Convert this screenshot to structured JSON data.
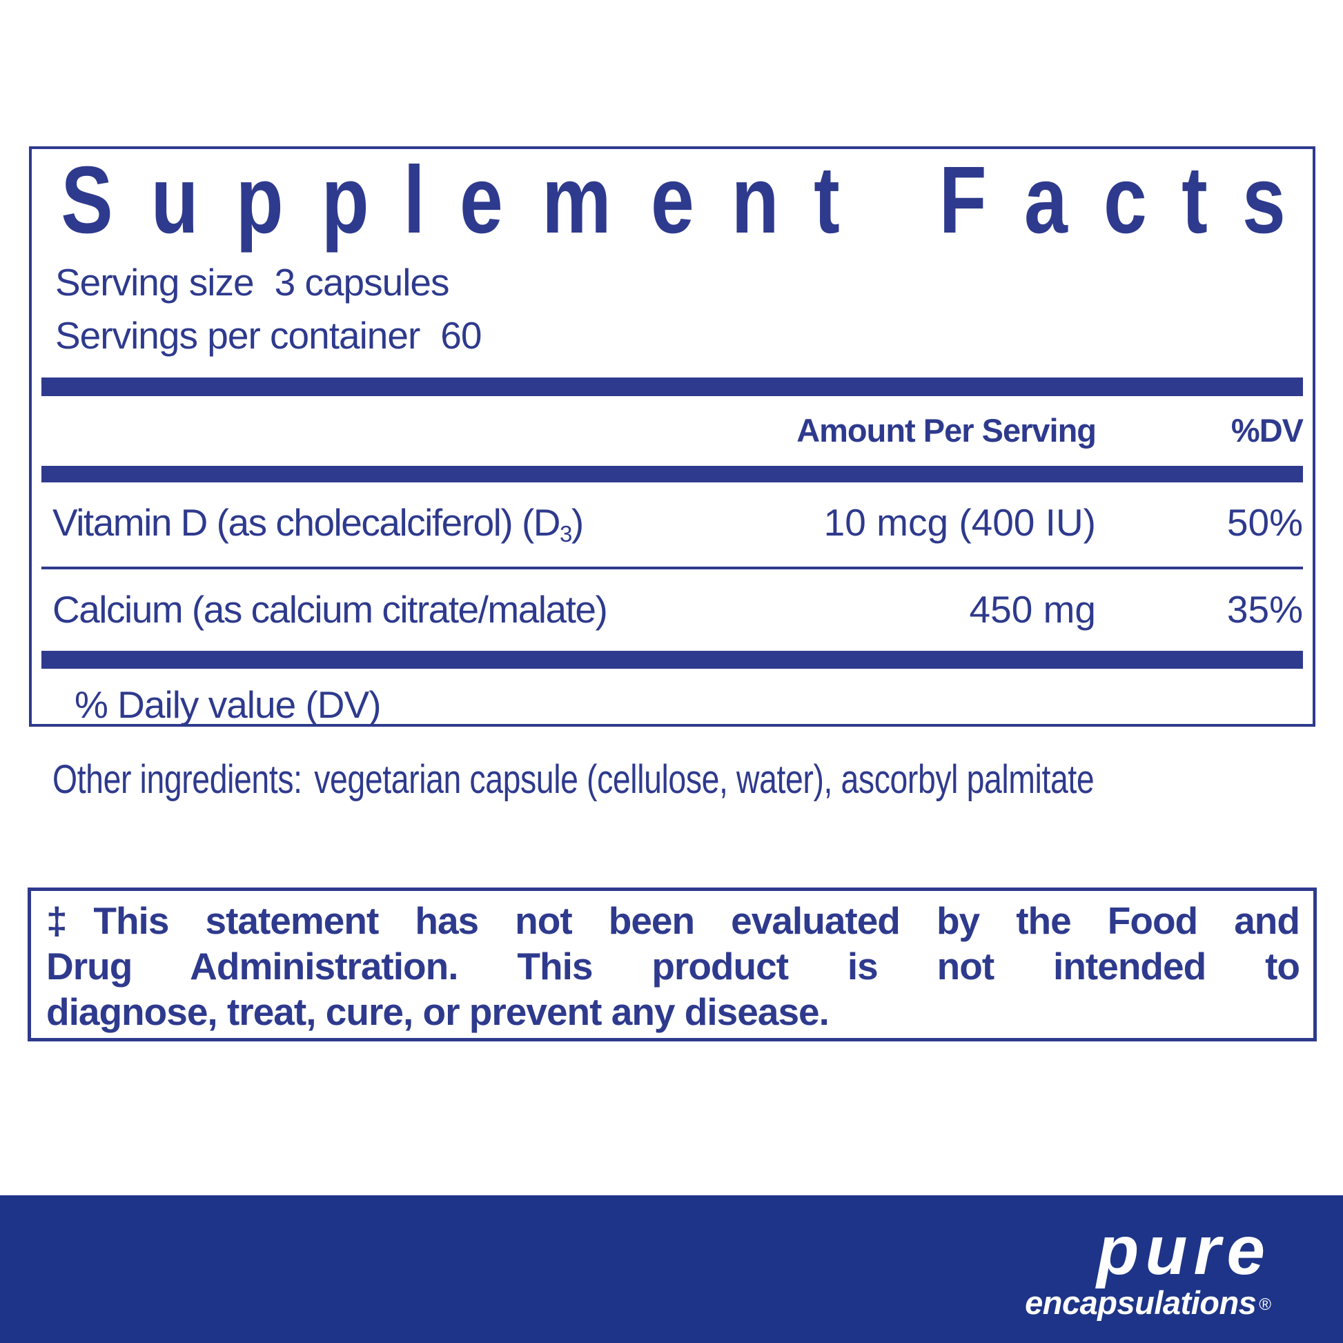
{
  "colors": {
    "ink": "#2e3a8d",
    "footer_bg": "#1d3488",
    "brand_text": "#ffffff"
  },
  "panel": {
    "title": "Supplement Facts",
    "serving_rows": [
      {
        "label": "Serving size",
        "value": "3 capsules"
      },
      {
        "label": "Servings per container",
        "value": "60"
      }
    ],
    "header": {
      "amount": "Amount Per Serving",
      "dv": "%DV"
    },
    "rows": [
      {
        "name": [
          {
            "t": "Vitamin D (as cholecalciferol) (D"
          },
          {
            "t": "3",
            "sub": true
          },
          {
            "t": ")"
          }
        ],
        "amount": "10 mcg (400 IU)",
        "dv": "50%"
      },
      {
        "name": [
          {
            "t": "Calcium (as calcium citrate/malate)"
          }
        ],
        "amount": "450 mg",
        "dv": "35%"
      }
    ],
    "footnote": "% Daily value (DV)"
  },
  "other_ingredients": {
    "label": "Other ingredients:",
    "text": "vegetarian capsule (cellulose, water), ascorbyl palmitate"
  },
  "disclaimer_lines": [
    "‡This statement has not been evaluated by the Food and",
    "Drug Administration. This product is not intended to",
    "diagnose, treat, cure, or prevent any disease."
  ],
  "footer": {
    "brand_top": "pure",
    "brand_bottom": "encapsulations",
    "registered": "®"
  }
}
